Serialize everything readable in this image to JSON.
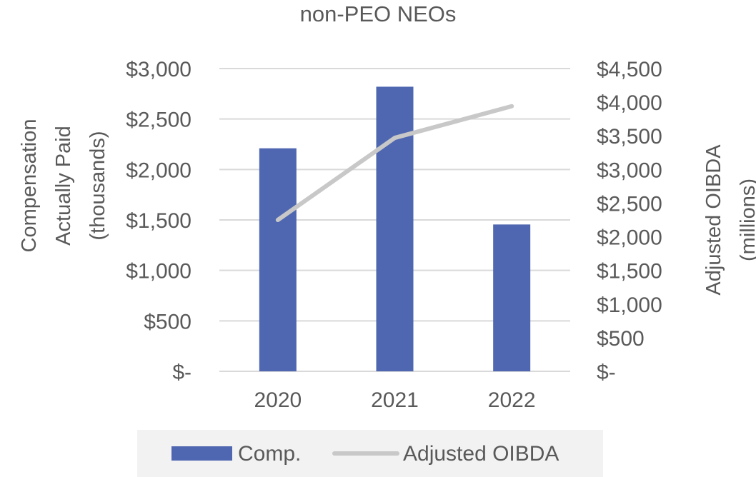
{
  "chart_data": {
    "type": "bar",
    "title": "non-PEO NEOs",
    "categories": [
      "2020",
      "2021",
      "2022"
    ],
    "series": [
      {
        "name": "Comp.",
        "type": "bar",
        "axis": "left",
        "color": "#4F67B0",
        "values": [
          2210,
          2820,
          1455
        ]
      },
      {
        "name": "Adjusted OIBDA",
        "type": "line",
        "axis": "right",
        "color": "#C8C8C8",
        "values": [
          2250,
          3470,
          3940
        ]
      }
    ],
    "y_left": {
      "label_lines": [
        "Compensation",
        "Actually Paid",
        "(thousands)"
      ],
      "ylim": [
        0,
        3000
      ],
      "ticks": [
        0,
        500,
        1000,
        1500,
        2000,
        2500,
        3000
      ],
      "tick_labels": [
        "$-",
        "$500",
        "$1,000",
        "$1,500",
        "$2,000",
        "$2,500",
        "$3,000"
      ]
    },
    "y_right": {
      "label_lines": [
        "Adjusted OIBDA",
        "(millions)"
      ],
      "ylim": [
        0,
        4500
      ],
      "ticks": [
        0,
        500,
        1000,
        1500,
        2000,
        2500,
        3000,
        3500,
        4000,
        4500
      ],
      "tick_labels": [
        "$-",
        "$500",
        "$1,000",
        "$1,500",
        "$2,000",
        "$2,500",
        "$3,000",
        "$3,500",
        "$4,000",
        "$4,500"
      ]
    },
    "grid": true,
    "legend_position": "bottom",
    "legend_background": "#F2F2F2",
    "gridline_color": "#D9D9D9"
  }
}
